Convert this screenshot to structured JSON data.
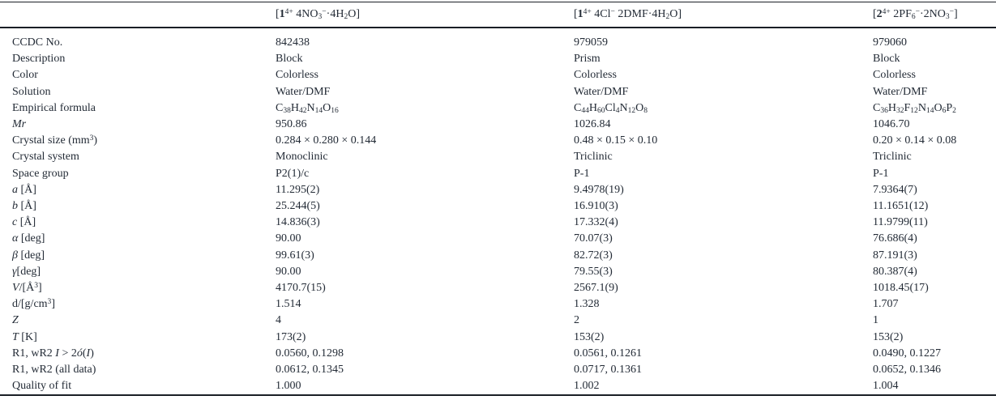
{
  "colors": {
    "text": "#232b36",
    "rule": "#1a1f26",
    "background": "#ffffff"
  },
  "table": {
    "columns": [
      {
        "header_html": "[<b>1</b><sup>4+</sup> 4NO<sub>3</sub><sup>−</sup>·4H<sub>2</sub>O]"
      },
      {
        "header_html": "[<b>1</b><sup>4+</sup> 4Cl<sup>−</sup> 2DMF·4H<sub>2</sub>O]"
      },
      {
        "header_html": "[<b>2</b><sup>4+</sup> 2PF<sub>6</sub><sup>−</sup>·2NO<sub>3</sub><sup>−</sup>]"
      }
    ],
    "rows": [
      {
        "label_html": "CCDC No.",
        "values_html": [
          "842438",
          "979059",
          "979060"
        ]
      },
      {
        "label_html": "Description",
        "values_html": [
          "Block",
          "Prism",
          "Block"
        ]
      },
      {
        "label_html": "Color",
        "values_html": [
          "Colorless",
          "Colorless",
          "Colorless"
        ]
      },
      {
        "label_html": "Solution",
        "values_html": [
          "Water/DMF",
          "Water/DMF",
          "Water/DMF"
        ]
      },
      {
        "label_html": "Empirical formula",
        "values_html": [
          "C<sub>38</sub>H<sub>42</sub>N<sub>14</sub>O<sub>16</sub>",
          "C<sub>44</sub>H<sub>60</sub>Cl<sub>4</sub>N<sub>12</sub>O<sub>8</sub>",
          "C<sub>36</sub>H<sub>32</sub>F<sub>12</sub>N<sub>14</sub>O<sub>6</sub>P<sub>2</sub>"
        ]
      },
      {
        "label_html": "<i>Mr</i>",
        "values_html": [
          "950.86",
          "1026.84",
          "1046.70"
        ]
      },
      {
        "label_html": "Crystal size (mm<sup>3</sup>)",
        "values_html": [
          "0.284 × 0.280 × 0.144",
          "0.48 × 0.15 × 0.10",
          "0.20 × 0.14 × 0.08"
        ]
      },
      {
        "label_html": "Crystal system",
        "values_html": [
          "Monoclinic",
          "Triclinic",
          "Triclinic"
        ]
      },
      {
        "label_html": "Space group",
        "values_html": [
          "P2(1)/c",
          "P-1",
          "P-1"
        ]
      },
      {
        "label_html": "<i>a</i> [Å]",
        "values_html": [
          "11.295(2)",
          "9.4978(19)",
          "7.9364(7)"
        ]
      },
      {
        "label_html": "<i>b</i> [Å]",
        "values_html": [
          "25.244(5)",
          "16.910(3)",
          "11.1651(12)"
        ]
      },
      {
        "label_html": "<i>c</i> [Å]",
        "values_html": [
          "14.836(3)",
          "17.332(4)",
          "11.9799(11)"
        ]
      },
      {
        "label_html": "<i>α</i> [deg]",
        "values_html": [
          "90.00",
          "70.07(3)",
          "76.686(4)"
        ]
      },
      {
        "label_html": "<i>β</i> [deg]",
        "values_html": [
          "99.61(3)",
          "82.72(3)",
          "87.191(3)"
        ]
      },
      {
        "label_html": "<i>γ</i>[deg]",
        "values_html": [
          "90.00",
          "79.55(3)",
          "80.387(4)"
        ]
      },
      {
        "label_html": "<i>V</i>/[Å<sup>3</sup>]",
        "values_html": [
          "4170.7(15)",
          "2567.1(9)",
          "1018.45(17)"
        ]
      },
      {
        "label_html": "d/[g/cm<sup>3</sup>]",
        "values_html": [
          "1.514",
          "1.328",
          "1.707"
        ]
      },
      {
        "label_html": "<i>Z</i>",
        "values_html": [
          "4",
          "2",
          "1"
        ]
      },
      {
        "label_html": "<i>T</i> [K]",
        "values_html": [
          "173(2)",
          "153(2)",
          "153(2)"
        ]
      },
      {
        "label_html": "R1, wR2 <i>I</i> &gt; 2<i>ó</i>(<i>I</i>)",
        "values_html": [
          "0.0560, 0.1298",
          "0.0561, 0.1261",
          "0.0490, 0.1227"
        ]
      },
      {
        "label_html": "R1, wR2 (all data)",
        "values_html": [
          "0.0612, 0.1345",
          "0.0717, 0.1361",
          "0.0652, 0.1346"
        ]
      },
      {
        "label_html": "Quality of fit",
        "values_html": [
          "1.000",
          "1.002",
          "1.004"
        ]
      }
    ]
  }
}
